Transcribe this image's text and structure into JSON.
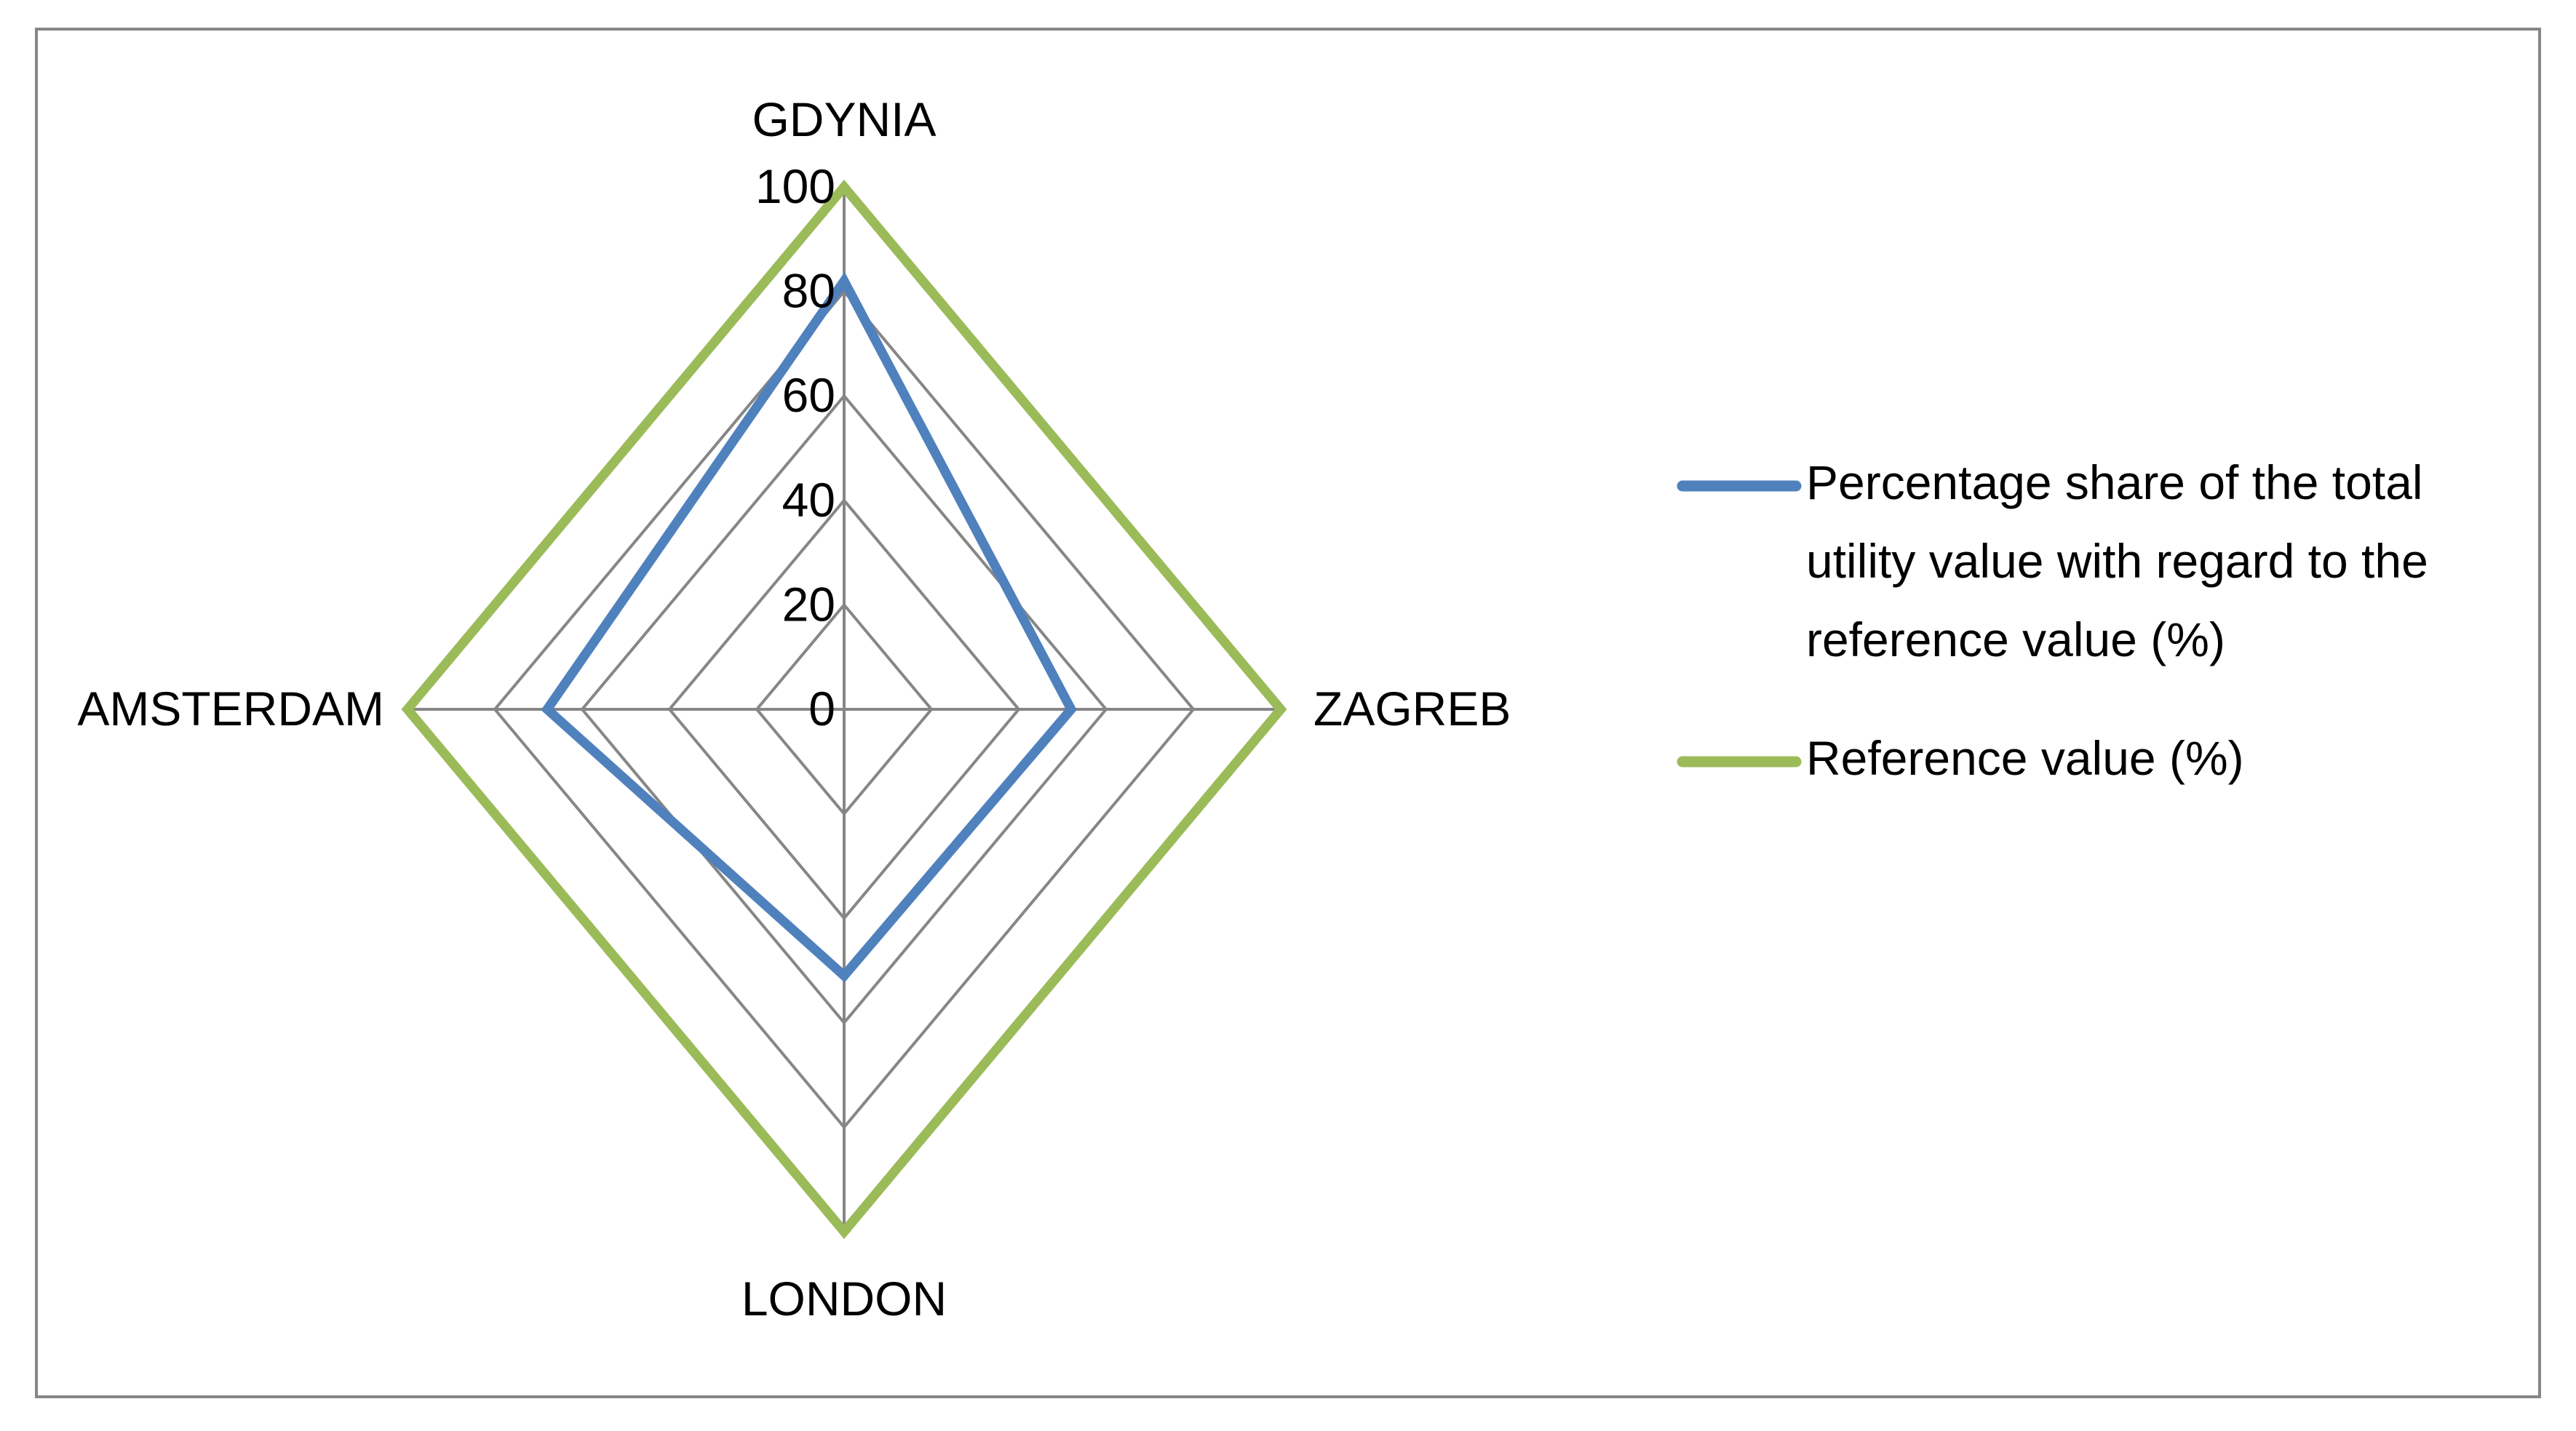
{
  "chart_data": {
    "type": "radar",
    "title": "",
    "categories": [
      "GDYNIA",
      "ZAGREB",
      "LONDON",
      "AMSTERDAM"
    ],
    "rlim": [
      0,
      100
    ],
    "ticks": [
      "0",
      "20",
      "40",
      "60",
      "80",
      "100"
    ],
    "tick_values": [
      0,
      20,
      40,
      60,
      80,
      100
    ],
    "grid": true,
    "legend_position": "right",
    "series": [
      {
        "name": "Percentage share of the total utility value with regard to the reference value (%)",
        "name_lines": [
          "Percentage share of the total",
          "utility value with regard to the",
          "reference value (%)"
        ],
        "values": [
          82,
          52,
          51,
          68
        ],
        "color": "#4F81BD"
      },
      {
        "name": "Reference value (%)",
        "name_lines": [
          "Reference value (%)"
        ],
        "values": [
          100,
          100,
          100,
          100
        ],
        "color": "#9BBB59"
      }
    ]
  },
  "colors": {
    "grid": "#868686",
    "border": "#868686",
    "background": "#ffffff"
  }
}
